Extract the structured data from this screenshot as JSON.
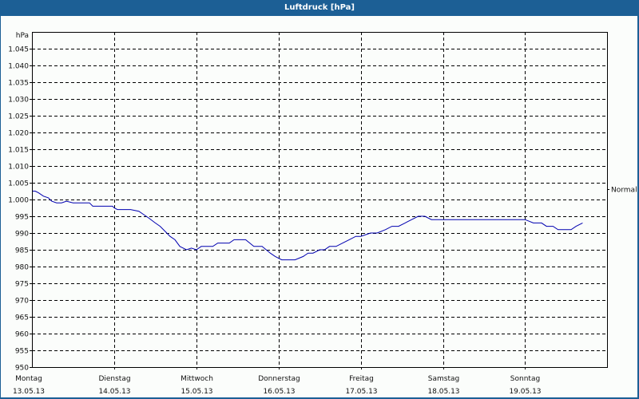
{
  "window": {
    "title": "Luftdruck [hPa]"
  },
  "chart_data": {
    "type": "line",
    "title": "Luftdruck [hPa]",
    "ylabel": "hPa",
    "xlabel": "",
    "ylim": [
      950,
      1050
    ],
    "yticks": [
      950,
      955,
      960,
      965,
      970,
      975,
      980,
      985,
      990,
      995,
      1000,
      1005,
      1010,
      1015,
      1020,
      1025,
      1030,
      1035,
      1040,
      1045
    ],
    "ytick_labels": [
      "950",
      "955",
      "960",
      "965",
      "970",
      "975",
      "980",
      "985",
      "990",
      "995",
      "1.000",
      "1.005",
      "1.010",
      "1.015",
      "1.020",
      "1.025",
      "1.030",
      "1.035",
      "1.040",
      "1.045"
    ],
    "grid": true,
    "reference_line": {
      "label": "Normal",
      "value": 1003
    },
    "categories": [
      {
        "day": "Montag",
        "date": "13.05.13"
      },
      {
        "day": "Dienstag",
        "date": "14.05.13"
      },
      {
        "day": "Mittwoch",
        "date": "15.05.13"
      },
      {
        "day": "Donnerstag",
        "date": "16.05.13"
      },
      {
        "day": "Freitag",
        "date": "17.05.13"
      },
      {
        "day": "Samstag",
        "date": "18.05.13"
      },
      {
        "day": "Sonntag",
        "date": "19.05.13"
      }
    ],
    "series": [
      {
        "name": "Luftdruck",
        "color": "#0000b0",
        "x_days": [
          0,
          0.04,
          0.08,
          0.14,
          0.2,
          0.24,
          0.3,
          0.36,
          0.42,
          0.5,
          0.6,
          0.7,
          0.74,
          0.8,
          0.9,
          0.98,
          1.0,
          1.04,
          1.1,
          1.2,
          1.3,
          1.36,
          1.42,
          1.5,
          1.56,
          1.62,
          1.68,
          1.74,
          1.8,
          1.88,
          1.94,
          2.0,
          2.06,
          2.12,
          2.2,
          2.26,
          2.32,
          2.4,
          2.46,
          2.52,
          2.6,
          2.7,
          2.8,
          2.9,
          2.96,
          3.04,
          3.1,
          3.2,
          3.3,
          3.36,
          3.42,
          3.5,
          3.56,
          3.62,
          3.7,
          3.78,
          3.86,
          3.94,
          4.0,
          4.06,
          4.12,
          4.2,
          4.3,
          4.38,
          4.46,
          4.54,
          4.62,
          4.7,
          4.78,
          4.86,
          4.96,
          5.04,
          5.1,
          5.2,
          5.28,
          5.36,
          5.44,
          5.52,
          5.6,
          5.7,
          5.8,
          5.9,
          6.0,
          6.1,
          6.2,
          6.26,
          6.34,
          6.4,
          6.48,
          6.56,
          6.62,
          6.7
        ],
        "values": [
          1002.5,
          1002.5,
          1002,
          1001,
          1000.5,
          999.5,
          999,
          999,
          999.5,
          999,
          999,
          999,
          998,
          998,
          998,
          998,
          997.5,
          997,
          997,
          997,
          996.5,
          995.5,
          994.5,
          993,
          992,
          990.5,
          989,
          988,
          986,
          985,
          985.5,
          985,
          986,
          986,
          986,
          987,
          987,
          987,
          988,
          988,
          988,
          986,
          986,
          984,
          983,
          982,
          982,
          982,
          983,
          984,
          984,
          985,
          985,
          986,
          986,
          987,
          988,
          989,
          989,
          989.5,
          990,
          990,
          991,
          992,
          992,
          993,
          994,
          995,
          995,
          994,
          994,
          994,
          994,
          994,
          994,
          994,
          994,
          994,
          994,
          994,
          994,
          994,
          994,
          993,
          993,
          992,
          992,
          991,
          991,
          991,
          992,
          993
        ]
      }
    ]
  }
}
